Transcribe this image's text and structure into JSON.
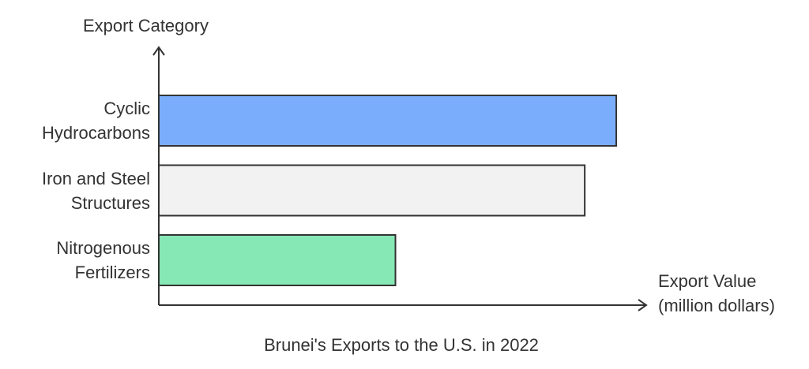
{
  "chart_data": {
    "type": "bar",
    "orientation": "horizontal",
    "title": "Brunei's Exports to the U.S. in 2022",
    "y_label": "Export Category",
    "x_label": "Export Value (million dollars)",
    "categories": [
      "Cyclic Hydrocarbons",
      "Iron and Steel Structures",
      "Nitrogenous Fertilizers"
    ],
    "values": [
      5.8,
      5.4,
      3.0
    ],
    "colors": [
      "#7aaefc",
      "#f2f2f2",
      "#86e8b5"
    ],
    "xlim": [
      0,
      6.2
    ]
  }
}
